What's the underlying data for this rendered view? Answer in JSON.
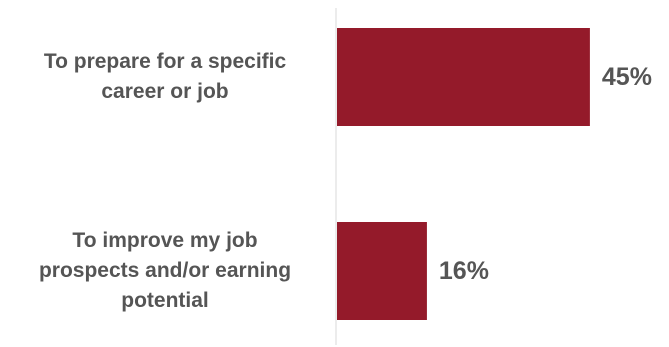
{
  "colors": {
    "bar": "#941A2A",
    "axis": "#D9D9D9",
    "text": "#555555"
  },
  "chart_data": {
    "type": "bar",
    "orientation": "horizontal",
    "categories": [
      "To prepare for a specific career or job",
      "To improve my job prospects and/or earning potential"
    ],
    "values": [
      45,
      16
    ],
    "value_labels": [
      "45%",
      "16%"
    ],
    "unit": "%",
    "title": "",
    "xlabel": "",
    "ylabel": "",
    "xlim": [
      0,
      50
    ],
    "grid": false,
    "legend": "none"
  }
}
